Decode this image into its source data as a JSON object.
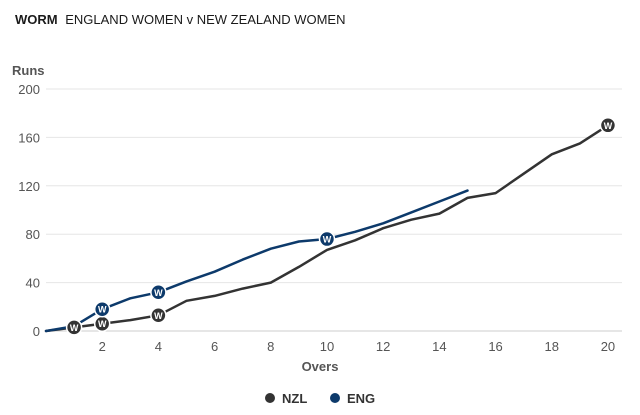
{
  "header": {
    "tag": "WORM",
    "title": "ENGLAND WOMEN v NEW ZEALAND WOMEN"
  },
  "chart_data": {
    "type": "line",
    "title": "ENGLAND WOMEN v NEW ZEALAND WOMEN",
    "xlabel": "Overs",
    "ylabel": "Runs",
    "xlim": [
      0,
      20.5
    ],
    "ylim": [
      0,
      200
    ],
    "xticks": [
      2,
      4,
      6,
      8,
      10,
      12,
      14,
      16,
      18,
      20
    ],
    "yticks": [
      0,
      40,
      80,
      120,
      160,
      200
    ],
    "grid": "horizontal",
    "legend_position": "bottom-center",
    "wicket_marker_label": "W",
    "series": [
      {
        "name": "NZL",
        "color": "#333333",
        "x": [
          0,
          1,
          2,
          3,
          4,
          5,
          6,
          7,
          8,
          9,
          10,
          11,
          12,
          13,
          14,
          15,
          16,
          17,
          18,
          19,
          20
        ],
        "values": [
          0,
          3,
          6,
          9,
          13,
          25,
          29,
          35,
          40,
          53,
          67,
          75,
          85,
          92,
          97,
          110,
          114,
          130,
          146,
          155,
          170
        ],
        "wickets": [
          [
            1,
            3
          ],
          [
            2,
            6
          ],
          [
            4,
            13
          ],
          [
            20,
            170
          ]
        ]
      },
      {
        "name": "ENG",
        "color": "#0d3a6b",
        "x": [
          0,
          1,
          2,
          3,
          4,
          5,
          6,
          7,
          8,
          9,
          10,
          11,
          12,
          13,
          14,
          15
        ],
        "values": [
          0,
          4,
          18,
          27,
          32,
          41,
          49,
          59,
          68,
          74,
          76,
          82,
          89,
          98,
          107,
          116
        ],
        "wickets": [
          [
            2,
            18
          ],
          [
            4,
            32
          ],
          [
            10,
            76
          ]
        ]
      }
    ]
  }
}
